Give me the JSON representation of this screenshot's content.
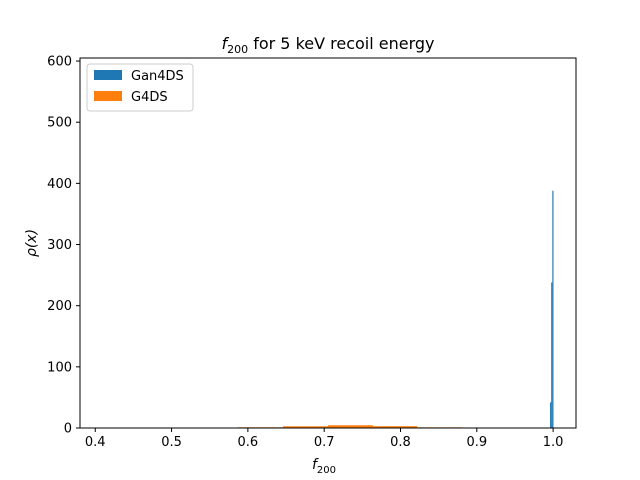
{
  "chart_data": {
    "type": "bar",
    "title": {
      "main": "f",
      "sub": "200",
      "rest": " for 5 keV recoil energy"
    },
    "xlabel": {
      "main": "f",
      "sub": "200"
    },
    "ylabel": "ρ(x)",
    "xlim": [
      0.38,
      1.03
    ],
    "ylim": [
      0,
      605
    ],
    "xticks": [
      0.4,
      0.5,
      0.6,
      0.7,
      0.8,
      0.9,
      1.0
    ],
    "xtick_labels": [
      "0.4",
      "0.5",
      "0.6",
      "0.7",
      "0.8",
      "0.9",
      "1.0"
    ],
    "yticks": [
      0,
      100,
      200,
      300,
      400,
      500,
      600
    ],
    "ytick_labels": [
      "0",
      "100",
      "200",
      "300",
      "400",
      "500",
      "600"
    ],
    "legend": {
      "position": "top-left",
      "entries": [
        "Gan4DS",
        "G4DS"
      ]
    },
    "grid": false,
    "series": [
      {
        "name": "Gan4DS",
        "color": "#1f77b4",
        "bins": [
          {
            "x0": 0.996,
            "x1": 0.9975,
            "value": 42
          },
          {
            "x0": 0.9975,
            "x1": 0.999,
            "value": 238
          },
          {
            "x0": 0.999,
            "x1": 1.0005,
            "value": 388
          }
        ]
      },
      {
        "name": "G4DS",
        "color": "#ff7f0e",
        "bins": [
          {
            "x0": 0.587,
            "x1": 0.646,
            "value": 1.2
          },
          {
            "x0": 0.646,
            "x1": 0.705,
            "value": 2.8
          },
          {
            "x0": 0.705,
            "x1": 0.764,
            "value": 4.5
          },
          {
            "x0": 0.764,
            "x1": 0.822,
            "value": 3.0
          },
          {
            "x0": 0.822,
            "x1": 0.881,
            "value": 1.1
          }
        ]
      }
    ]
  }
}
